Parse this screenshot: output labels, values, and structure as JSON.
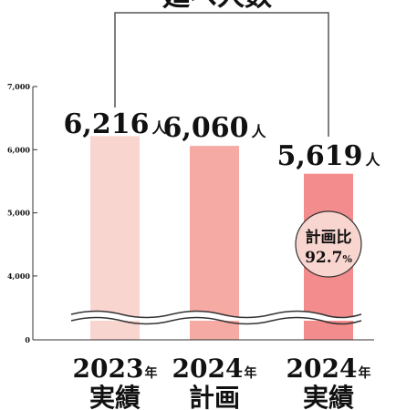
{
  "chart_data": {
    "type": "bar",
    "title": "延べ人数",
    "categories": [
      {
        "year": "2023",
        "year_unit": "年",
        "kind": "実績"
      },
      {
        "year": "2024",
        "year_unit": "年",
        "kind": "計画"
      },
      {
        "year": "2024",
        "year_unit": "年",
        "kind": "実績"
      }
    ],
    "values": [
      6216,
      6060,
      5619
    ],
    "value_labels": [
      "6,216",
      "6,060",
      "5,619"
    ],
    "value_unit": "人",
    "bar_colors": [
      "#f9d5cf",
      "#f5aaa4",
      "#f38c8c"
    ],
    "yticks": [
      {
        "value": 7000,
        "label": "7,000"
      },
      {
        "value": 6000,
        "label": "6,000"
      },
      {
        "value": 5000,
        "label": "5,000"
      },
      {
        "value": 4000,
        "label": "4,000"
      },
      {
        "value": 0,
        "label": "0"
      }
    ],
    "axis_break": true,
    "annotation": {
      "line1": "計画比",
      "value": "92.7",
      "unit": "%",
      "badge_color": "#f9d5cf",
      "attached_to_category": 2
    },
    "grid": false,
    "legend": false
  }
}
